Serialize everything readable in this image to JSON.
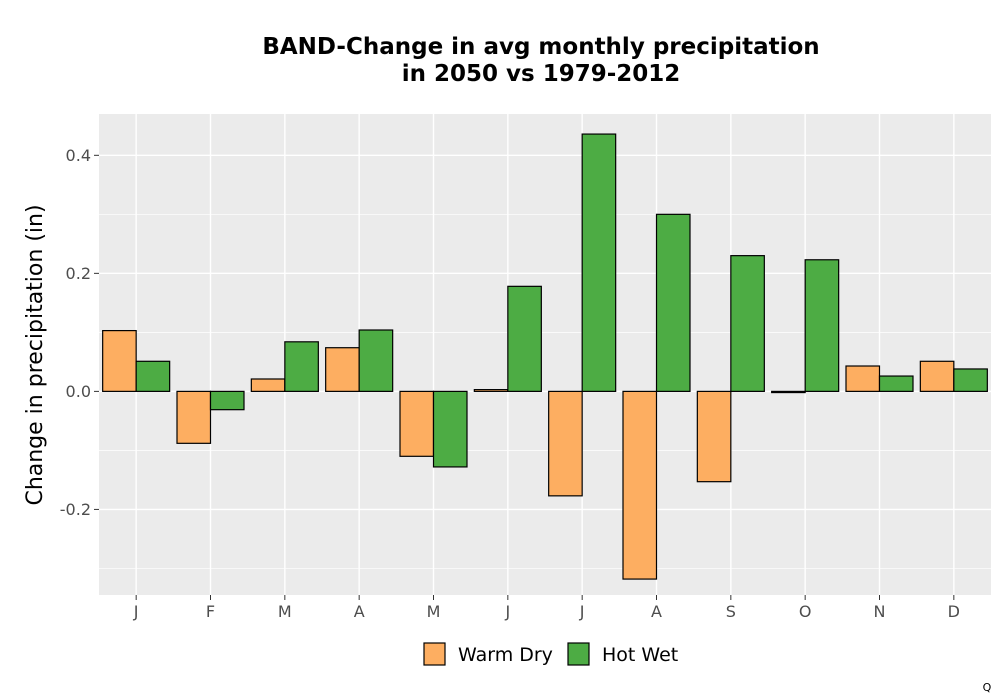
{
  "chart_data": {
    "type": "bar",
    "title_line1": "BAND-Change in avg monthly precipitation",
    "title_line2": "in 2050 vs 1979-2012",
    "xlabel": "",
    "ylabel": "Change in precipitation (in)",
    "categories": [
      "J",
      "F",
      "M",
      "A",
      "M",
      "J",
      "J",
      "A",
      "S",
      "O",
      "N",
      "D"
    ],
    "series": [
      {
        "name": "Warm Dry",
        "color": "#fdae61",
        "values": [
          0.103,
          -0.088,
          0.021,
          0.074,
          -0.11,
          0.003,
          -0.177,
          -0.318,
          -0.153,
          -0.002,
          0.043,
          0.051
        ]
      },
      {
        "name": "Hot Wet",
        "color": "#4dac44",
        "values": [
          0.051,
          -0.031,
          0.084,
          0.104,
          -0.128,
          0.178,
          0.436,
          0.3,
          0.23,
          0.223,
          0.026,
          0.038
        ]
      }
    ],
    "ylim": [
      -0.345,
      0.47
    ],
    "yticks": [
      -0.2,
      0.0,
      0.2,
      0.4
    ],
    "ytick_labels": [
      "-0.2",
      "0.0",
      "0.2",
      "0.4"
    ],
    "grid": true,
    "legend_position": "bottom"
  },
  "corner_label": "Q"
}
